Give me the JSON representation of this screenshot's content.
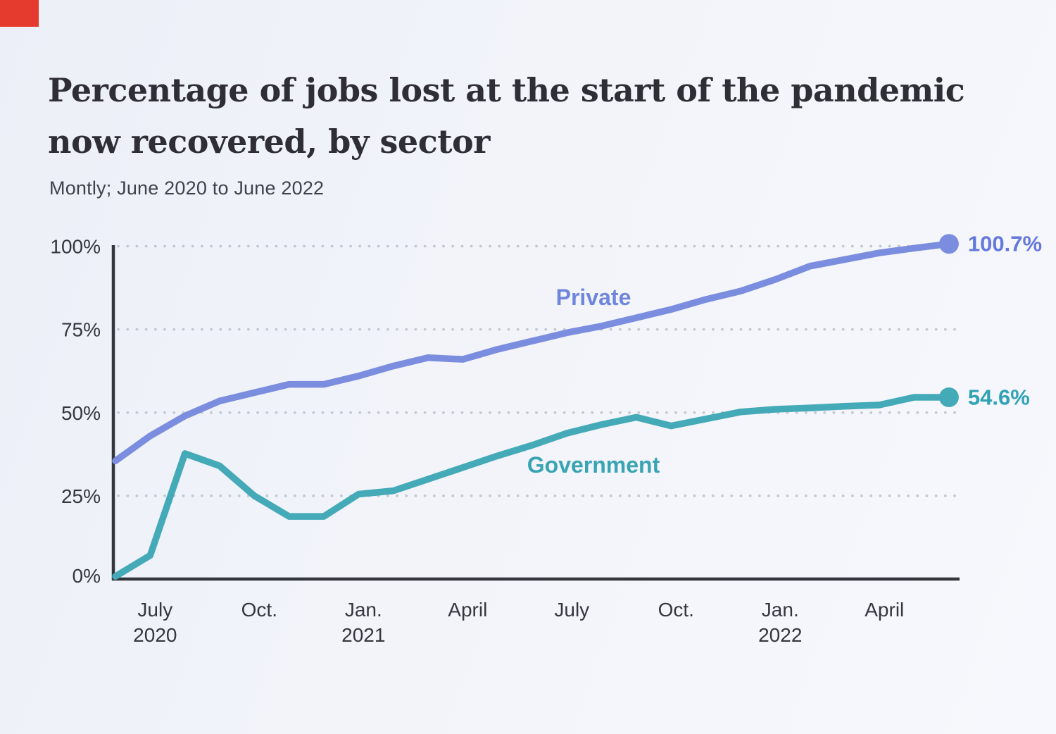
{
  "logo": {
    "color": "#e43b2e"
  },
  "header": {
    "title_line1": "Percentage of jobs lost at the start of the pandemic",
    "title_line2": "now recovered, by sector",
    "subtitle": "Montly; June 2020 to June 2022"
  },
  "chart_data": {
    "type": "line",
    "title": "Percentage of jobs lost at the start of the pandemic now recovered, by sector",
    "subtitle": "Montly; June 2020 to June 2022",
    "grid": "dotted horizontal gridlines",
    "legend_position": "inline labels on lines",
    "ylim": [
      0,
      103
    ],
    "months": [
      "2020-06",
      "2020-07",
      "2020-08",
      "2020-09",
      "2020-10",
      "2020-11",
      "2020-12",
      "2021-01",
      "2021-02",
      "2021-03",
      "2021-04",
      "2021-05",
      "2021-06",
      "2021-07",
      "2021-08",
      "2021-09",
      "2021-10",
      "2021-11",
      "2021-12",
      "2022-01",
      "2022-02",
      "2022-03",
      "2022-04",
      "2022-05",
      "2022-06"
    ],
    "y_axis": {
      "ticks": [
        {
          "value": 0,
          "label": "0%"
        },
        {
          "value": 25,
          "label": "25%"
        },
        {
          "value": 50,
          "label": "50%"
        },
        {
          "value": 75,
          "label": "75%"
        },
        {
          "value": 100,
          "label": "100%"
        }
      ]
    },
    "x_axis": {
      "ticks": [
        {
          "i": 1,
          "month": "July",
          "year": "2020"
        },
        {
          "i": 4,
          "month": "Oct.",
          "year": ""
        },
        {
          "i": 7,
          "month": "Jan.",
          "year": "2021"
        },
        {
          "i": 10,
          "month": "April",
          "year": ""
        },
        {
          "i": 13,
          "month": "July",
          "year": ""
        },
        {
          "i": 16,
          "month": "Oct.",
          "year": ""
        },
        {
          "i": 19,
          "month": "Jan.",
          "year": "2022"
        },
        {
          "i": 22,
          "month": "April",
          "year": ""
        }
      ]
    },
    "series": [
      {
        "name": "Private",
        "line_color": "#7a8dde",
        "label_color": "#6f86dc",
        "end_label": "100.7%",
        "end_label_color": "#6479da",
        "values": [
          35.5,
          43,
          49,
          53.5,
          56,
          58.5,
          58.5,
          61,
          64,
          66.5,
          66,
          69,
          71.5,
          74,
          76,
          78.5,
          81,
          84,
          86.5,
          90,
          94,
          96,
          98,
          99.4,
          100.7
        ]
      },
      {
        "name": "Government",
        "line_color": "#45aab8",
        "label_color": "#39a4b3",
        "end_label": "54.6%",
        "end_label_color": "#2fa2b3",
        "values": [
          0.8,
          7.1,
          37.7,
          34,
          25,
          18.8,
          18.8,
          25.5,
          26.5,
          30,
          33.5,
          37,
          40.2,
          43.8,
          46.4,
          48.6,
          46,
          48.1,
          50.2,
          51,
          51.4,
          51.9,
          52.3,
          54.6,
          54.6
        ]
      }
    ],
    "axis_color": "#33363c",
    "grid_dot_color": "#c4c8d3",
    "tick_label_color": "#34373e"
  }
}
